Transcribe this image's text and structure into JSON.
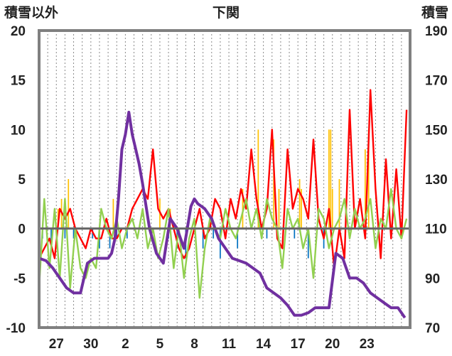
{
  "chart_data": {
    "type": "combo",
    "title": "下関",
    "ylabel_left": "積雪以外",
    "ylabel_right": "積雪",
    "y_left_lim": [
      -10,
      20
    ],
    "y_left_ticks": [
      "20",
      "15",
      "10",
      "5",
      "0",
      "-5",
      "-10"
    ],
    "y_right_lim": [
      70,
      190
    ],
    "y_right_ticks": [
      "190",
      "170",
      "150",
      "130",
      "110",
      "90",
      "70"
    ],
    "x_range": [
      0,
      21.5
    ],
    "x_ticks": [
      {
        "pos": 1,
        "label": "27"
      },
      {
        "pos": 3,
        "label": "30"
      },
      {
        "pos": 5,
        "label": "2"
      },
      {
        "pos": 7,
        "label": "5"
      },
      {
        "pos": 9,
        "label": "8"
      },
      {
        "pos": 11,
        "label": "11"
      },
      {
        "pos": 13,
        "label": "14"
      },
      {
        "pos": 15,
        "label": "17"
      },
      {
        "pos": 17,
        "label": "20"
      },
      {
        "pos": 19,
        "label": "23"
      }
    ],
    "grid": "vertical-dotted",
    "colors": {
      "red": "#ff0000",
      "green": "#92d050",
      "purple": "#7030a0",
      "orange": "#ffc000",
      "blue": "#0070c0",
      "frame": "#808080"
    },
    "series": [
      {
        "axis": "left",
        "style": "line",
        "color": "#ff0000",
        "x": [
          0,
          0.3,
          0.6,
          0.9,
          1.2,
          1.5,
          1.8,
          2.1,
          2.4,
          2.7,
          3.0,
          3.3,
          3.6,
          3.9,
          4.2,
          4.5,
          4.8,
          5.1,
          5.4,
          5.7,
          6.0,
          6.3,
          6.6,
          6.9,
          7.2,
          7.5,
          7.8,
          8.1,
          8.4,
          8.7,
          9.0,
          9.3,
          9.6,
          9.9,
          10.2,
          10.5,
          10.8,
          11.1,
          11.4,
          11.7,
          12.0,
          12.3,
          12.6,
          12.9,
          13.2,
          13.5,
          13.8,
          14.1,
          14.4,
          14.7,
          15.0,
          15.3,
          15.6,
          15.9,
          16.2,
          16.5,
          16.8,
          17.1,
          17.4,
          17.7,
          18.0,
          18.3,
          18.6,
          18.9,
          19.2,
          19.5,
          19.8,
          20.1,
          20.4,
          20.7,
          21.0,
          21.3
        ],
        "y": [
          -3,
          -2,
          -1,
          -3,
          2,
          1,
          2,
          0,
          -1,
          -2,
          0,
          -1,
          -1,
          1,
          -1,
          -1,
          0,
          0,
          2,
          3,
          4,
          3,
          8,
          2,
          1,
          2,
          0,
          -2,
          -3,
          -2,
          0,
          2,
          -1,
          0,
          3,
          2,
          -1,
          3,
          1,
          4,
          2,
          8,
          3,
          0,
          2,
          10,
          -1,
          -2,
          8,
          2,
          4,
          3,
          1,
          9,
          1,
          -1,
          2,
          -4,
          0,
          -3,
          12,
          0,
          3,
          -1,
          14,
          4,
          -3,
          7,
          -1,
          6,
          -1,
          12
        ]
      },
      {
        "axis": "left",
        "style": "line",
        "color": "#92d050",
        "x": [
          0,
          0.3,
          0.6,
          0.9,
          1.2,
          1.5,
          1.8,
          2.1,
          2.4,
          2.7,
          3.0,
          3.3,
          3.6,
          3.9,
          4.2,
          4.5,
          4.8,
          5.1,
          5.4,
          5.7,
          6.0,
          6.3,
          6.6,
          6.9,
          7.2,
          7.5,
          7.8,
          8.1,
          8.4,
          8.7,
          9.0,
          9.3,
          9.6,
          9.9,
          10.2,
          10.5,
          10.8,
          11.1,
          11.4,
          11.7,
          12.0,
          12.3,
          12.6,
          12.9,
          13.2,
          13.5,
          13.8,
          14.1,
          14.4,
          14.7,
          15.0,
          15.3,
          15.6,
          15.9,
          16.2,
          16.5,
          16.8,
          17.1,
          17.4,
          17.7,
          18.0,
          18.3,
          18.6,
          18.9,
          19.2,
          19.5,
          19.8,
          20.1,
          20.4,
          20.7,
          21.0,
          21.3
        ],
        "y": [
          -6,
          3,
          -4,
          2,
          -5,
          3,
          -6,
          0,
          -4,
          -5,
          -3,
          -4,
          2,
          0,
          -1,
          1,
          -2,
          0,
          1,
          -1,
          2,
          -2,
          0,
          -3,
          -1,
          2,
          -4,
          0,
          -5,
          -1,
          1,
          -7,
          -2,
          1,
          0,
          -1,
          2,
          0,
          -1,
          1,
          3,
          0,
          2,
          -1,
          3,
          1,
          0,
          -4,
          2,
          0,
          1,
          -2,
          0,
          -5,
          2,
          1,
          -2,
          0,
          1,
          3,
          -1,
          2,
          0,
          1,
          3,
          -2,
          1,
          0,
          4,
          0,
          -1,
          1
        ]
      },
      {
        "axis": "right",
        "style": "line",
        "color": "#7030a0",
        "x": [
          0,
          0.4,
          0.8,
          1.2,
          1.6,
          2.0,
          2.4,
          2.8,
          3.2,
          3.6,
          4.0,
          4.2,
          4.4,
          4.6,
          4.8,
          5.0,
          5.2,
          5.4,
          5.6,
          5.8,
          6.0,
          6.4,
          6.8,
          7.2,
          7.6,
          8.0,
          8.4,
          8.8,
          9.0,
          9.2,
          9.6,
          10.0,
          10.4,
          10.8,
          11.2,
          11.6,
          12.0,
          12.4,
          12.8,
          13.2,
          13.6,
          14.0,
          14.4,
          14.8,
          15.2,
          15.6,
          16.0,
          16.4,
          16.8,
          17.2,
          17.6,
          18.0,
          18.4,
          18.8,
          19.2,
          19.6,
          20.0,
          20.4,
          20.8,
          21.2
        ],
        "y": [
          98,
          97,
          94,
          90,
          86,
          84,
          84,
          96,
          98,
          98,
          98,
          100,
          106,
          122,
          142,
          148,
          157,
          148,
          142,
          136,
          128,
          110,
          100,
          96,
          114,
          110,
          102,
          119,
          122,
          120,
          118,
          114,
          106,
          102,
          98,
          97,
          96,
          94,
          92,
          86,
          84,
          82,
          79,
          75,
          75,
          76,
          78,
          78,
          78,
          100,
          98,
          90,
          90,
          88,
          84,
          82,
          80,
          78,
          78,
          74
        ]
      },
      {
        "axis": "left",
        "style": "bars",
        "color": "#ffc000",
        "x": [
          1.1,
          1.3,
          1.7,
          4.3,
          7.0,
          7.6,
          11.8,
          12.7,
          13.6,
          13.9,
          15.1,
          15.2,
          16.8,
          16.9,
          17.0,
          17.4,
          18.9,
          19.1
        ],
        "y": [
          2,
          3,
          5,
          3,
          3,
          2,
          4,
          10,
          9,
          4,
          5,
          4,
          10,
          10,
          4,
          5,
          8,
          10
        ]
      },
      {
        "axis": "left",
        "style": "bars",
        "color": "#0070c0",
        "x": [
          0.2,
          0.7,
          1.5,
          2.0,
          3.1,
          3.5,
          4.1,
          4.5,
          5.1,
          7.5,
          8.0,
          8.5,
          9.5,
          10.1,
          10.5,
          11.5,
          13.2,
          14.8,
          15.6,
          16.5
        ],
        "y": [
          -1,
          -2,
          -1,
          -1,
          -1,
          -2,
          -2,
          -1,
          -1,
          -1,
          -2,
          -3,
          -2,
          -1,
          -3,
          -2,
          -1,
          -1,
          -3,
          -2
        ]
      }
    ]
  }
}
